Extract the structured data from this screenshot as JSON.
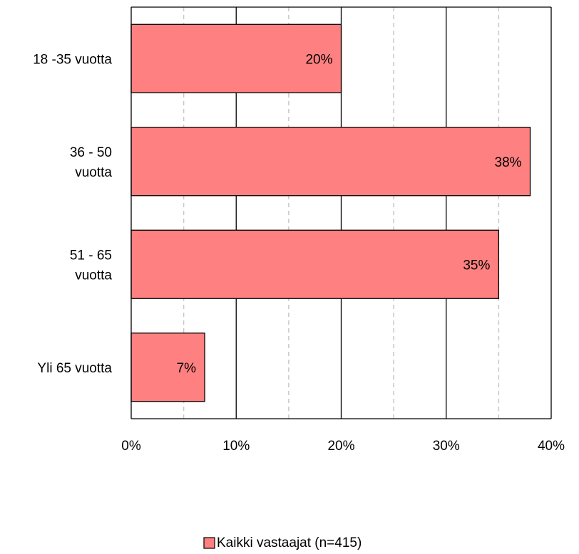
{
  "chart_data": {
    "type": "bar",
    "orientation": "horizontal",
    "categories": [
      [
        "18 -35 vuotta"
      ],
      [
        "36 - 50",
        "vuotta"
      ],
      [
        "51 - 65",
        "vuotta"
      ],
      [
        "Yli 65 vuotta"
      ]
    ],
    "series": [
      {
        "name": "Kaikki vastaajat (n=415)",
        "values": [
          20,
          38,
          35,
          7
        ],
        "data_labels": [
          "20%",
          "38%",
          "35%",
          "7%"
        ],
        "color": "#FF8080"
      }
    ],
    "xlim": [
      0,
      40
    ],
    "xticks": [
      0,
      10,
      20,
      30,
      40
    ],
    "xtick_labels": [
      "0%",
      "10%",
      "20%",
      "30%",
      "40%"
    ],
    "major_gridlines": true,
    "minor_gridlines": true,
    "minor_gridlines_dashed": true,
    "legend_position": "bottom",
    "title": "",
    "xlabel": "",
    "ylabel": ""
  }
}
